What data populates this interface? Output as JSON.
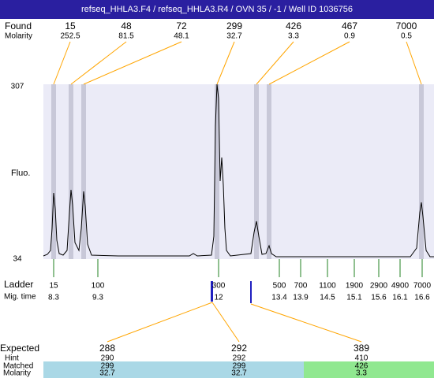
{
  "header": {
    "title": "refseq_HHLA3.F4 / refseq_HHLA3.R4 / OVN 35 / -1 / Well ID 1036756"
  },
  "found": {
    "label": "Found",
    "molarity_label": "Molarity",
    "sizes": [
      "15",
      "48",
      "72",
      "299",
      "426",
      "467",
      "7000"
    ],
    "molarity": [
      "252.5",
      "81.5",
      "48.1",
      "32.7",
      "3.3",
      "0.9",
      "0.5"
    ]
  },
  "y_axis": {
    "label": "Fluo.",
    "max": "307",
    "min": "34"
  },
  "ladder": {
    "label": "Ladder",
    "time_label": "Mig. time",
    "sizes": [
      "15",
      "100",
      "300",
      "500",
      "700",
      "1100",
      "1900",
      "2900",
      "4900",
      "7000"
    ],
    "times": [
      "8.3",
      "9.3",
      "12",
      "13.4",
      "13.9",
      "14.5",
      "15.1",
      "15.6",
      "16.1",
      "16.6"
    ]
  },
  "expected": {
    "label": "Expected",
    "hint_label": "Hint",
    "matched_label": "Matched",
    "molarity_label": "Molarity",
    "sizes": [
      "288",
      "292",
      "389"
    ],
    "hints": [
      "290",
      "292",
      "410"
    ],
    "matched": [
      "299",
      "299",
      "426"
    ],
    "molarity": [
      "32.7",
      "32.7",
      "3.3"
    ]
  }
}
